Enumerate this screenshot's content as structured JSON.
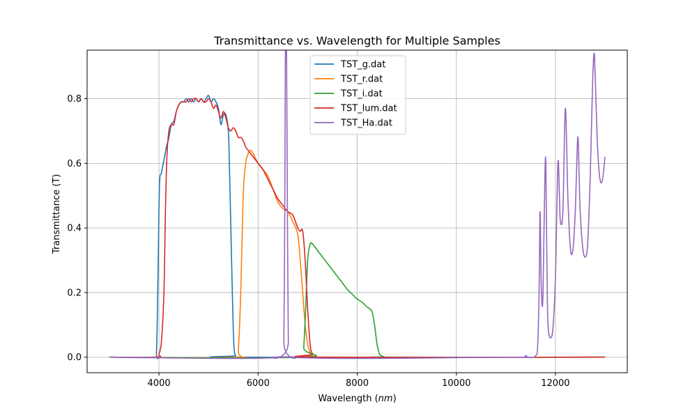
{
  "chart_data": {
    "type": "line",
    "title": "Transmittance vs. Wavelength for Multiple Samples",
    "xlabel": "Wavelength (nm)",
    "ylabel": "Transmittance (T)",
    "xlim": [
      2550,
      13450
    ],
    "ylim": [
      -0.048,
      0.95
    ],
    "xticks": [
      4000,
      6000,
      8000,
      10000,
      12000
    ],
    "yticks": [
      0.0,
      0.2,
      0.4,
      0.6,
      0.8
    ],
    "xtick_labels": [
      "4000",
      "6000",
      "8000",
      "10000",
      "12000"
    ],
    "ytick_labels": [
      "0.0",
      "0.2",
      "0.4",
      "0.6",
      "0.8"
    ],
    "grid": true,
    "legend_position": "top-center",
    "series": [
      {
        "name": "TST_g.dat",
        "color": "#1f77b4",
        "x": [
          3000,
          3900,
          3950,
          3980,
          4010,
          4050,
          4100,
          4150,
          4200,
          4250,
          4300,
          4350,
          4400,
          4450,
          4500,
          4550,
          4600,
          4650,
          4700,
          4750,
          4800,
          4850,
          4900,
          4950,
          5000,
          5050,
          5100,
          5150,
          5200,
          5250,
          5300,
          5350,
          5400,
          5420,
          5450,
          5480,
          5500,
          5520,
          5550,
          5600,
          13000
        ],
        "y": [
          0.0,
          0.0,
          0.02,
          0.25,
          0.53,
          0.57,
          0.61,
          0.65,
          0.68,
          0.72,
          0.73,
          0.76,
          0.78,
          0.79,
          0.79,
          0.8,
          0.79,
          0.8,
          0.79,
          0.8,
          0.79,
          0.8,
          0.79,
          0.8,
          0.81,
          0.79,
          0.8,
          0.79,
          0.77,
          0.72,
          0.75,
          0.75,
          0.7,
          0.6,
          0.4,
          0.2,
          0.08,
          0.02,
          0.005,
          0.0,
          0.0
        ]
      },
      {
        "name": "TST_r.dat",
        "color": "#ff7f0e",
        "x": [
          3000,
          5550,
          5600,
          5650,
          5700,
          5750,
          5800,
          5850,
          5900,
          6000,
          6100,
          6200,
          6300,
          6400,
          6500,
          6600,
          6700,
          6800,
          6850,
          6900,
          6950,
          7000,
          7050,
          7100,
          7200,
          13000
        ],
        "y": [
          0.0,
          0.0,
          0.02,
          0.2,
          0.5,
          0.6,
          0.63,
          0.64,
          0.63,
          0.6,
          0.58,
          0.56,
          0.52,
          0.48,
          0.46,
          0.45,
          0.42,
          0.38,
          0.3,
          0.2,
          0.1,
          0.04,
          0.015,
          0.005,
          0.0,
          0.0
        ]
      },
      {
        "name": "TST_i.dat",
        "color": "#2ca02c",
        "x": [
          3000,
          6880,
          6920,
          6960,
          7000,
          7050,
          7100,
          7200,
          7300,
          7400,
          7500,
          7600,
          7700,
          7800,
          7900,
          8000,
          8100,
          8200,
          8250,
          8300,
          8350,
          8400,
          8450,
          8500,
          8550,
          8600,
          13000
        ],
        "y": [
          0.0,
          0.0,
          0.03,
          0.15,
          0.3,
          0.35,
          0.35,
          0.33,
          0.31,
          0.29,
          0.27,
          0.25,
          0.23,
          0.21,
          0.195,
          0.18,
          0.17,
          0.155,
          0.15,
          0.14,
          0.1,
          0.04,
          0.01,
          0.004,
          0.001,
          0.0,
          0.0
        ]
      },
      {
        "name": "TST_lum.dat",
        "color": "#d62728",
        "x": [
          3000,
          3950,
          4000,
          4050,
          4100,
          4130,
          4160,
          4200,
          4250,
          4300,
          4350,
          4400,
          4450,
          4500,
          4550,
          4600,
          4650,
          4700,
          4750,
          4800,
          4850,
          4900,
          4950,
          5000,
          5050,
          5100,
          5150,
          5200,
          5250,
          5300,
          5350,
          5400,
          5450,
          5500,
          5550,
          5600,
          5650,
          5700,
          5750,
          5800,
          5850,
          5900,
          6000,
          6100,
          6200,
          6300,
          6400,
          6500,
          6600,
          6700,
          6800,
          6850,
          6900,
          6950,
          7000,
          7050,
          7100,
          7200,
          13000
        ],
        "y": [
          0.0,
          0.0,
          0.01,
          0.05,
          0.2,
          0.45,
          0.62,
          0.7,
          0.72,
          0.72,
          0.76,
          0.78,
          0.79,
          0.79,
          0.79,
          0.8,
          0.79,
          0.8,
          0.8,
          0.79,
          0.8,
          0.79,
          0.79,
          0.8,
          0.79,
          0.77,
          0.78,
          0.76,
          0.74,
          0.76,
          0.74,
          0.71,
          0.7,
          0.71,
          0.7,
          0.68,
          0.68,
          0.67,
          0.65,
          0.64,
          0.63,
          0.62,
          0.6,
          0.58,
          0.55,
          0.52,
          0.49,
          0.47,
          0.45,
          0.44,
          0.4,
          0.39,
          0.39,
          0.3,
          0.15,
          0.04,
          0.01,
          0.0,
          0.0
        ]
      },
      {
        "name": "TST_Ha.dat",
        "color": "#9467bd",
        "x": [
          3000,
          6490,
          6520,
          6540,
          6550,
          6560,
          6575,
          6590,
          6610,
          6640,
          11000,
          11350,
          11400,
          11450,
          11550,
          11600,
          11640,
          11670,
          11690,
          11710,
          11730,
          11750,
          11770,
          11800,
          11820,
          11840,
          11860,
          11900,
          11950,
          12000,
          12050,
          12080,
          12100,
          12150,
          12200,
          12250,
          12300,
          12350,
          12400,
          12450,
          12480,
          12500,
          12550,
          12600,
          12650,
          12700,
          12750,
          12780,
          12800,
          12850,
          12900,
          12950,
          13000
        ],
        "y": [
          0.0,
          0.0,
          0.05,
          0.5,
          0.93,
          0.93,
          0.93,
          0.5,
          0.05,
          0.0,
          0.0,
          0.0,
          0.005,
          0.0,
          0.0,
          0.005,
          0.03,
          0.2,
          0.45,
          0.25,
          0.16,
          0.2,
          0.4,
          0.62,
          0.4,
          0.15,
          0.08,
          0.06,
          0.09,
          0.25,
          0.6,
          0.5,
          0.42,
          0.45,
          0.77,
          0.5,
          0.34,
          0.33,
          0.45,
          0.68,
          0.55,
          0.45,
          0.34,
          0.31,
          0.35,
          0.55,
          0.85,
          0.94,
          0.88,
          0.65,
          0.55,
          0.55,
          0.62
        ]
      }
    ]
  }
}
